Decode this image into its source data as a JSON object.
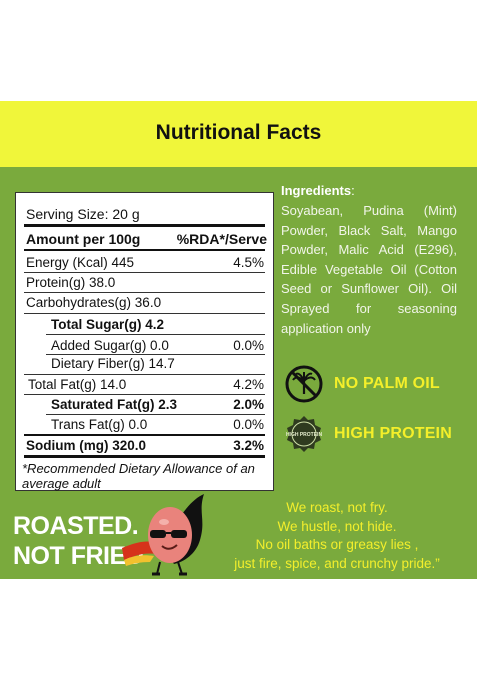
{
  "header": {
    "title": "Nutritional Facts"
  },
  "nutrition": {
    "serving_size": "Serving Size: 20 g",
    "amount_header": "Amount per 100g",
    "rda_header": "%RDA*/Serve",
    "rows": [
      {
        "label": "Energy (Kcal) 445",
        "value": "4.5%"
      },
      {
        "label": "Protein(g) 38.0",
        "value": ""
      },
      {
        "label": "Carbohydrates(g) 36.0",
        "value": ""
      },
      {
        "label": "Total Sugar(g) 4.2",
        "value": ""
      },
      {
        "label": "Added Sugar(g) 0.0",
        "value": "0.0%"
      },
      {
        "label": "Dietary Fiber(g) 14.7",
        "value": ""
      },
      {
        "label": "Total Fat(g) 14.0",
        "value": "4.2%"
      },
      {
        "label": "Saturated Fat(g) 2.3",
        "value": "2.0%"
      },
      {
        "label": "Trans Fat(g)  0.0",
        "value": "0.0%"
      },
      {
        "label": "Sodium (mg) 320.0",
        "value": "3.2%"
      }
    ],
    "footnote": "*Recommended Dietary Allowance of an average adult"
  },
  "ingredients": {
    "heading": "Ingredients",
    "colon": ":",
    "text": "Soyabean, Pudina (Mint) Powder, Black Salt, Mango Powder, Malic Acid (E296), Edible Vegetable Oil (Cotton Seed or Sunflower Oil). Oil Sprayed for seasoning application only"
  },
  "badges": {
    "palm_oil": {
      "text": "NO PALM OIL",
      "icon": "no-palm-oil-icon"
    },
    "protein": {
      "text": "HIGH PROTEIN",
      "icon": "high-protein-seal-icon",
      "seal_text": "HIGH PROTEIN"
    }
  },
  "slogan": {
    "line1": "ROASTED.",
    "line2": "NOT FRIED"
  },
  "poem": {
    "line1": "We roast, not fry.",
    "line2": "We hustle, not hide.",
    "line3": "No oil baths or greasy lies ,",
    "line4": "just fire, spice, and crunchy pride.”"
  },
  "colors": {
    "header_band": "#f0f63a",
    "panel_green": "#7aaa3d",
    "accent_yellow": "#f4ef2a"
  }
}
